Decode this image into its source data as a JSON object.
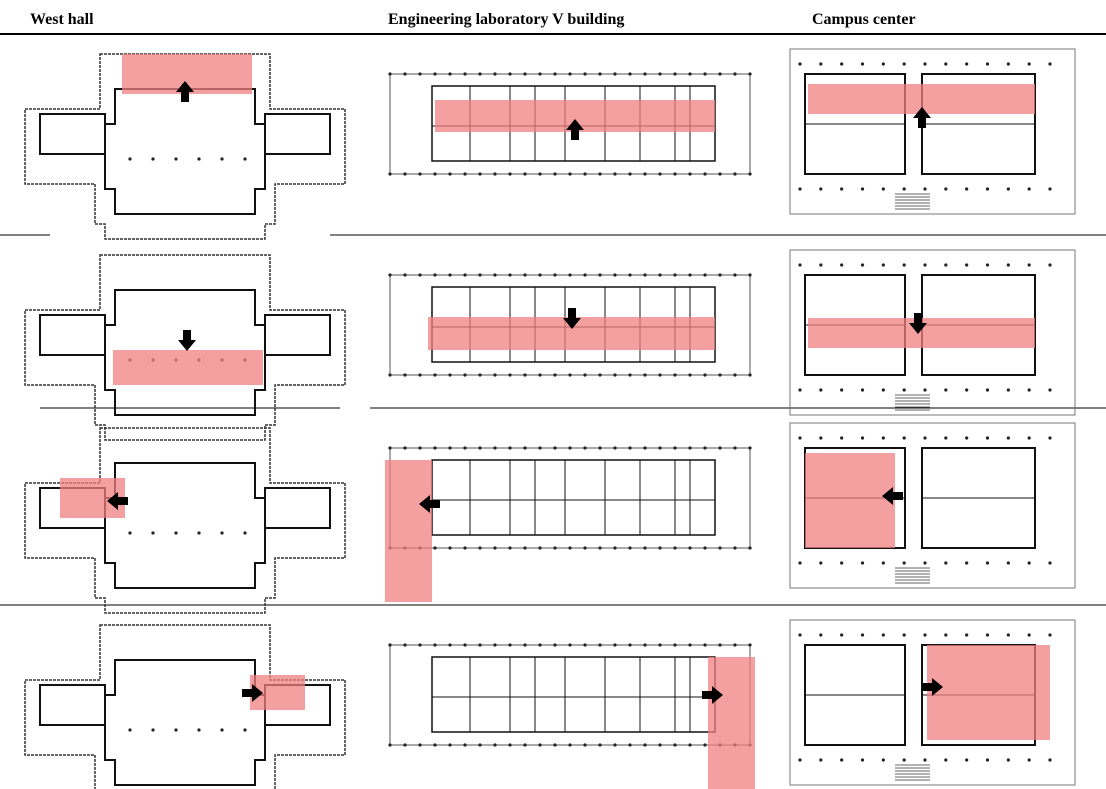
{
  "table": {
    "columns": [
      "West hall",
      "Engineering laboratory V building",
      "Campus center"
    ]
  }
}
